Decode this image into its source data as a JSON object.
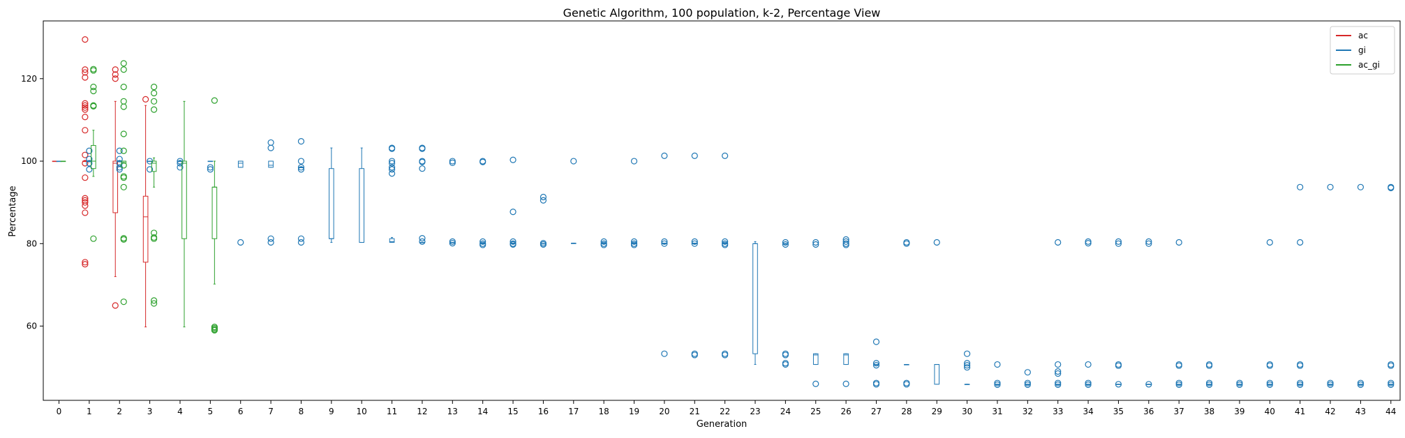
{
  "chart_data": {
    "type": "box",
    "title": "Genetic Algorithm, 100 population, k-2, Percentage View",
    "xlabel": "Generation",
    "ylabel": "Percentage",
    "categories": [
      "0",
      "1",
      "2",
      "3",
      "4",
      "5",
      "6",
      "7",
      "8",
      "9",
      "10",
      "11",
      "12",
      "13",
      "14",
      "15",
      "16",
      "17",
      "18",
      "19",
      "20",
      "21",
      "22",
      "23",
      "24",
      "25",
      "26",
      "27",
      "28",
      "29",
      "30",
      "31",
      "32",
      "33",
      "34",
      "35",
      "36",
      "37",
      "38",
      "39",
      "40",
      "41",
      "42",
      "43",
      "44"
    ],
    "yticks": [
      60,
      80,
      100,
      120
    ],
    "ylim": [
      42,
      134
    ],
    "legend_position": "top-right",
    "series": [
      {
        "name": "ac",
        "color": "#d62728",
        "boxes": [
          {
            "gen": 0,
            "q1": 100,
            "median": 100,
            "q3": 100,
            "whislo": 100,
            "whishi": 100,
            "fliers": []
          },
          {
            "gen": 1,
            "q1": 100,
            "median": 100,
            "q3": 100,
            "whislo": 100,
            "whishi": 100,
            "fliers": [
              129.5,
              122.2,
              121.5,
              120.3,
              114,
              113.5,
              113,
              112.5,
              110.7,
              107.5,
              101.5,
              99.5,
              96,
              91,
              90.5,
              90,
              89.2,
              87.5,
              75.5,
              75
            ]
          },
          {
            "gen": 2,
            "q1": 87.5,
            "median": 99.5,
            "q3": 100,
            "whislo": 72,
            "whishi": 114.5,
            "fliers": [
              122.2,
              121,
              120,
              65
            ]
          },
          {
            "gen": 3,
            "q1": 75.5,
            "median": 86.5,
            "q3": 91.5,
            "whislo": 59.8,
            "whishi": 113.5,
            "fliers": [
              115
            ]
          }
        ]
      },
      {
        "name": "gi",
        "color": "#1f77b4",
        "boxes": [
          {
            "gen": 0,
            "q1": 100,
            "median": 100,
            "q3": 100,
            "whislo": 100,
            "whishi": 100,
            "fliers": []
          },
          {
            "gen": 1,
            "q1": 100,
            "median": 100,
            "q3": 100,
            "whislo": 100,
            "whishi": 100,
            "fliers": [
              102.5,
              100.5,
              99.5,
              98
            ]
          },
          {
            "gen": 2,
            "q1": 100,
            "median": 100,
            "q3": 100,
            "whislo": 100,
            "whishi": 100,
            "fliers": [
              102.5,
              100.5,
              99.5,
              98.5,
              98
            ]
          },
          {
            "gen": 3,
            "q1": 100,
            "median": 100,
            "q3": 100,
            "whislo": 100,
            "whishi": 100,
            "fliers": [
              100,
              98
            ]
          },
          {
            "gen": 4,
            "q1": 100,
            "median": 100,
            "q3": 100,
            "whislo": 100,
            "whishi": 100,
            "fliers": [
              100,
              99.5,
              98.5
            ]
          },
          {
            "gen": 5,
            "q1": 100,
            "median": 100,
            "q3": 100,
            "whislo": 100,
            "whishi": 100,
            "fliers": [
              98.5,
              98
            ]
          },
          {
            "gen": 6,
            "q1": 98.5,
            "median": 99.5,
            "q3": 100,
            "whislo": 98.5,
            "whishi": 100,
            "fliers": [
              80.3
            ]
          },
          {
            "gen": 7,
            "q1": 98.5,
            "median": 99,
            "q3": 100,
            "whislo": 98.5,
            "whishi": 100,
            "fliers": [
              104.5,
              103.2,
              81.2,
              80.3
            ]
          },
          {
            "gen": 8,
            "q1": 98.5,
            "median": 98.5,
            "q3": 98.5,
            "whislo": 98.5,
            "whishi": 98.5,
            "fliers": [
              104.8,
              100,
              98.5,
              98,
              81.2,
              80.3
            ]
          },
          {
            "gen": 9,
            "q1": 81.2,
            "median": 81.2,
            "q3": 98.2,
            "whislo": 80.3,
            "whishi": 103.2,
            "fliers": []
          },
          {
            "gen": 10,
            "q1": 80.3,
            "median": 80.3,
            "q3": 98.2,
            "whislo": 80.3,
            "whishi": 103.2,
            "fliers": []
          },
          {
            "gen": 11,
            "q1": 80.3,
            "median": 80.5,
            "q3": 81.2,
            "whislo": 80.3,
            "whishi": 81.5,
            "fliers": [
              103.2,
              103,
              100,
              99.5,
              98.5,
              98,
              97
            ]
          },
          {
            "gen": 12,
            "q1": 80.3,
            "median": 80.3,
            "q3": 80.3,
            "whislo": 80.3,
            "whishi": 80.3,
            "fliers": [
              103.2,
              103,
              100,
              99.8,
              98.2,
              81.3,
              80.5
            ]
          },
          {
            "gen": 13,
            "q1": 80.3,
            "median": 80.3,
            "q3": 80.3,
            "whislo": 80.3,
            "whishi": 80.3,
            "fliers": [
              100,
              99.6,
              80.5,
              80.1
            ]
          },
          {
            "gen": 14,
            "q1": 80.1,
            "median": 80.1,
            "q3": 80.1,
            "whislo": 80.1,
            "whishi": 80.1,
            "fliers": [
              100,
              99.8,
              80.5,
              80,
              79.7
            ]
          },
          {
            "gen": 15,
            "q1": 80.1,
            "median": 80.1,
            "q3": 80.1,
            "whislo": 80.1,
            "whishi": 80.1,
            "fliers": [
              100.3,
              87.7,
              80.5,
              80,
              79.8
            ]
          },
          {
            "gen": 16,
            "q1": 80,
            "median": 80,
            "q3": 80,
            "whislo": 80,
            "whishi": 80,
            "fliers": [
              91.3,
              90.5,
              80.1,
              79.8
            ]
          },
          {
            "gen": 17,
            "q1": 80.1,
            "median": 80.1,
            "q3": 80.1,
            "whislo": 80.1,
            "whishi": 80.1,
            "fliers": [
              100
            ]
          },
          {
            "gen": 18,
            "q1": 80.1,
            "median": 80.1,
            "q3": 80.1,
            "whislo": 80.1,
            "whishi": 80.1,
            "fliers": [
              80.5,
              80,
              79.7
            ]
          },
          {
            "gen": 19,
            "q1": 80.1,
            "median": 80.1,
            "q3": 80.1,
            "whislo": 80.1,
            "whishi": 80.1,
            "fliers": [
              100,
              80.5,
              80,
              79.7
            ]
          },
          {
            "gen": 20,
            "q1": 80.1,
            "median": 80.1,
            "q3": 80.1,
            "whislo": 80.1,
            "whishi": 80.1,
            "fliers": [
              101.3,
              80.5,
              80,
              53.3
            ]
          },
          {
            "gen": 21,
            "q1": 80.1,
            "median": 80.1,
            "q3": 80.1,
            "whislo": 80.1,
            "whishi": 80.1,
            "fliers": [
              101.3,
              80.5,
              80,
              53.3,
              53
            ]
          },
          {
            "gen": 22,
            "q1": 80.1,
            "median": 80.1,
            "q3": 80.1,
            "whislo": 80.1,
            "whishi": 80.1,
            "fliers": [
              101.3,
              80.5,
              80,
              79.7,
              53.3,
              53
            ]
          },
          {
            "gen": 23,
            "q1": 53.3,
            "median": 80,
            "q3": 80,
            "whislo": 50.7,
            "whishi": 80.5,
            "fliers": []
          },
          {
            "gen": 24,
            "q1": 80,
            "median": 80,
            "q3": 80,
            "whislo": 80,
            "whishi": 80,
            "fliers": [
              80.3,
              79.8,
              53.3,
              53,
              51,
              50.7
            ]
          },
          {
            "gen": 25,
            "q1": 50.7,
            "median": 53,
            "q3": 53.3,
            "whislo": 50.7,
            "whishi": 53.3,
            "fliers": [
              80.3,
              79.8,
              46
            ]
          },
          {
            "gen": 26,
            "q1": 50.7,
            "median": 53,
            "q3": 53.3,
            "whislo": 50.7,
            "whishi": 53.3,
            "fliers": [
              81,
              80.5,
              80,
              79.7,
              46
            ]
          },
          {
            "gen": 27,
            "q1": 50.7,
            "median": 50.7,
            "q3": 50.7,
            "whislo": 50.7,
            "whishi": 50.7,
            "fliers": [
              56.2,
              51,
              50.5,
              46.2,
              45.9
            ]
          },
          {
            "gen": 28,
            "q1": 50.7,
            "median": 50.7,
            "q3": 50.7,
            "whislo": 50.7,
            "whishi": 50.7,
            "fliers": [
              80.3,
              80,
              46.2,
              45.9
            ]
          },
          {
            "gen": 29,
            "q1": 45.9,
            "median": 50.7,
            "q3": 50.7,
            "whislo": 45.9,
            "whishi": 50.7,
            "fliers": [
              80.3
            ]
          },
          {
            "gen": 30,
            "q1": 45.9,
            "median": 45.9,
            "q3": 45.9,
            "whislo": 45.9,
            "whishi": 45.9,
            "fliers": [
              53.3,
              51,
              50.5,
              50
            ]
          },
          {
            "gen": 31,
            "q1": 45.9,
            "median": 45.9,
            "q3": 45.9,
            "whislo": 45.9,
            "whishi": 45.9,
            "fliers": [
              50.7,
              46.2,
              45.8
            ]
          },
          {
            "gen": 32,
            "q1": 45.9,
            "median": 45.9,
            "q3": 45.9,
            "whislo": 45.9,
            "whishi": 45.9,
            "fliers": [
              48.8,
              46.2,
              45.8
            ]
          },
          {
            "gen": 33,
            "q1": 45.9,
            "median": 45.9,
            "q3": 45.9,
            "whislo": 45.9,
            "whishi": 45.9,
            "fliers": [
              80.3,
              50.7,
              49,
              48.5,
              46.2,
              45.8
            ]
          },
          {
            "gen": 34,
            "q1": 45.9,
            "median": 45.9,
            "q3": 45.9,
            "whislo": 45.9,
            "whishi": 45.9,
            "fliers": [
              80.5,
              80.1,
              50.7,
              46.2,
              45.8
            ]
          },
          {
            "gen": 35,
            "q1": 45.9,
            "median": 45.9,
            "q3": 45.9,
            "whislo": 45.9,
            "whishi": 45.9,
            "fliers": [
              80.5,
              80,
              50.7,
              50.4,
              45.9
            ]
          },
          {
            "gen": 36,
            "q1": 45.9,
            "median": 45.9,
            "q3": 45.9,
            "whislo": 45.9,
            "whishi": 45.9,
            "fliers": [
              80.5,
              80,
              45.9
            ]
          },
          {
            "gen": 37,
            "q1": 45.9,
            "median": 45.9,
            "q3": 45.9,
            "whislo": 45.9,
            "whishi": 45.9,
            "fliers": [
              80.3,
              50.7,
              50.4,
              46.2,
              45.8
            ]
          },
          {
            "gen": 38,
            "q1": 45.9,
            "median": 45.9,
            "q3": 45.9,
            "whislo": 45.9,
            "whishi": 45.9,
            "fliers": [
              50.7,
              50.4,
              46.2,
              45.8
            ]
          },
          {
            "gen": 39,
            "q1": 45.9,
            "median": 45.9,
            "q3": 45.9,
            "whislo": 45.9,
            "whishi": 45.9,
            "fliers": [
              46.2,
              45.8
            ]
          },
          {
            "gen": 40,
            "q1": 45.9,
            "median": 45.9,
            "q3": 45.9,
            "whislo": 45.9,
            "whishi": 45.9,
            "fliers": [
              80.3,
              50.7,
              50.4,
              46.2,
              45.8
            ]
          },
          {
            "gen": 41,
            "q1": 45.9,
            "median": 45.9,
            "q3": 45.9,
            "whislo": 45.9,
            "whishi": 45.9,
            "fliers": [
              93.7,
              80.3,
              50.7,
              50.4,
              46.2,
              45.8
            ]
          },
          {
            "gen": 42,
            "q1": 45.9,
            "median": 45.9,
            "q3": 45.9,
            "whislo": 45.9,
            "whishi": 45.9,
            "fliers": [
              93.7,
              46.2,
              45.8
            ]
          },
          {
            "gen": 43,
            "q1": 45.9,
            "median": 45.9,
            "q3": 45.9,
            "whislo": 45.9,
            "whishi": 45.9,
            "fliers": [
              93.7,
              46.2,
              45.8
            ]
          },
          {
            "gen": 44,
            "q1": 45.9,
            "median": 45.9,
            "q3": 45.9,
            "whislo": 45.9,
            "whishi": 45.9,
            "fliers": [
              93.7,
              93.5,
              50.7,
              50.4,
              46.2,
              45.8
            ]
          }
        ]
      },
      {
        "name": "ac_gi",
        "color": "#2ca02c",
        "boxes": [
          {
            "gen": 0,
            "q1": 100,
            "median": 100,
            "q3": 100,
            "whislo": 100,
            "whishi": 100,
            "fliers": []
          },
          {
            "gen": 1,
            "q1": 98.2,
            "median": 100,
            "q3": 103.8,
            "whislo": 96.3,
            "whishi": 107.5,
            "fliers": [
              122.3,
              122,
              118,
              117,
              113.5,
              113.3,
              81.2
            ]
          },
          {
            "gen": 2,
            "q1": 99.5,
            "median": 100,
            "q3": 100,
            "whislo": 99.5,
            "whishi": 100,
            "fliers": [
              123.7,
              122.2,
              118,
              114.5,
              113.2,
              106.6,
              102.5,
              99,
              96.3,
              96,
              93.7,
              81.3,
              81,
              65.9
            ]
          },
          {
            "gen": 3,
            "q1": 97.5,
            "median": 99.5,
            "q3": 100,
            "whislo": 93.7,
            "whishi": 100.8,
            "fliers": [
              118,
              116.5,
              114.5,
              112.5,
              82.6,
              81.5,
              81.2,
              66.2,
              65.5
            ]
          },
          {
            "gen": 4,
            "q1": 81.2,
            "median": 99.5,
            "q3": 100,
            "whislo": 59.8,
            "whishi": 114.5,
            "fliers": []
          },
          {
            "gen": 5,
            "q1": 81.2,
            "median": 93.7,
            "q3": 93.7,
            "whislo": 70.2,
            "whishi": 100,
            "fliers": [
              114.7,
              59.8,
              59.5,
              59.2,
              59
            ]
          }
        ]
      }
    ]
  }
}
